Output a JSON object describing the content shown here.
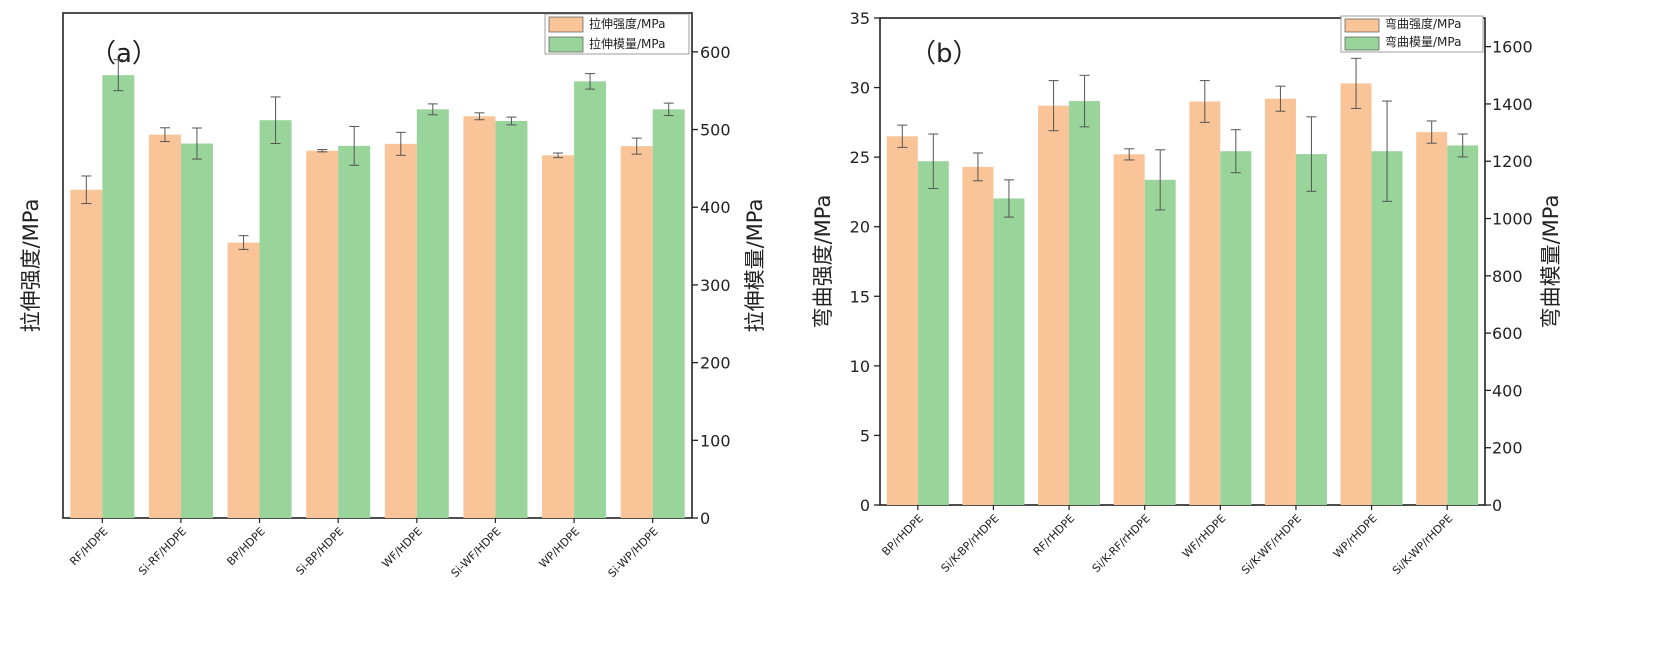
{
  "colors": {
    "strength": "#f9c497",
    "modulus": "#99d49b",
    "error": "#555555",
    "axis": "#222222"
  },
  "chart_data": [
    {
      "type": "bar",
      "panel_label": "（a）",
      "categories": [
        "RF/HDPE",
        "Si-RF/HDPE",
        "BP/HDPE",
        "Si-BP/HDPE",
        "WF/HDPE",
        "Si-WF/HDPE",
        "WP/HDPE",
        "Si-WP/HDPE"
      ],
      "ylabel": "拉伸强度/MPa",
      "y2label": "拉伸模量/MPa",
      "ylim": [
        0,
        22
      ],
      "y2lim": [
        0,
        650
      ],
      "y2ticks": [
        0,
        100,
        200,
        300,
        400,
        500,
        600
      ],
      "legend_position": "top-right",
      "series": [
        {
          "name": "拉伸强度/MPa",
          "axis": "left",
          "values": [
            14.3,
            16.7,
            12.0,
            16.0,
            16.3,
            17.5,
            15.8,
            16.2
          ],
          "errors": [
            0.6,
            0.3,
            0.3,
            0.05,
            0.5,
            0.15,
            0.1,
            0.35
          ]
        },
        {
          "name": "拉伸模量/MPa",
          "axis": "right",
          "values": [
            570,
            482,
            512,
            479,
            526,
            511,
            562,
            526
          ],
          "errors": [
            20,
            20,
            30,
            25,
            7,
            5,
            10,
            8
          ]
        }
      ]
    },
    {
      "type": "bar",
      "panel_label": "（b）",
      "categories": [
        "BP/rHDPE",
        "Si/K-BP/rHDPE",
        "RF/rHDPE",
        "Si/K-RF/rHDPE",
        "WF/rHDPE",
        "Si/K-WF/rHDPE",
        "WP/rHDPE",
        "Si/K-WP/rHDPE"
      ],
      "ylabel": "弯曲强度/MPa",
      "y2label": "弯曲模量/MPa",
      "ylim": [
        0,
        35
      ],
      "yticks": [
        0,
        5,
        10,
        15,
        20,
        25,
        30,
        35
      ],
      "y2lim": [
        0,
        1700
      ],
      "y2ticks": [
        0,
        200,
        400,
        600,
        800,
        1000,
        1200,
        1400,
        1600
      ],
      "legend_position": "top-right",
      "series": [
        {
          "name": "弯曲强度/MPa",
          "axis": "left",
          "values": [
            26.5,
            24.3,
            28.7,
            25.2,
            29.0,
            29.2,
            30.3,
            26.8
          ],
          "errors": [
            0.8,
            1.0,
            1.8,
            0.4,
            1.5,
            0.9,
            1.8,
            0.8
          ]
        },
        {
          "name": "弯曲模量/MPa",
          "axis": "right",
          "values": [
            1200,
            1070,
            1410,
            1135,
            1235,
            1225,
            1235,
            1255
          ],
          "errors": [
            95,
            65,
            90,
            105,
            75,
            130,
            175,
            40
          ]
        }
      ]
    }
  ]
}
